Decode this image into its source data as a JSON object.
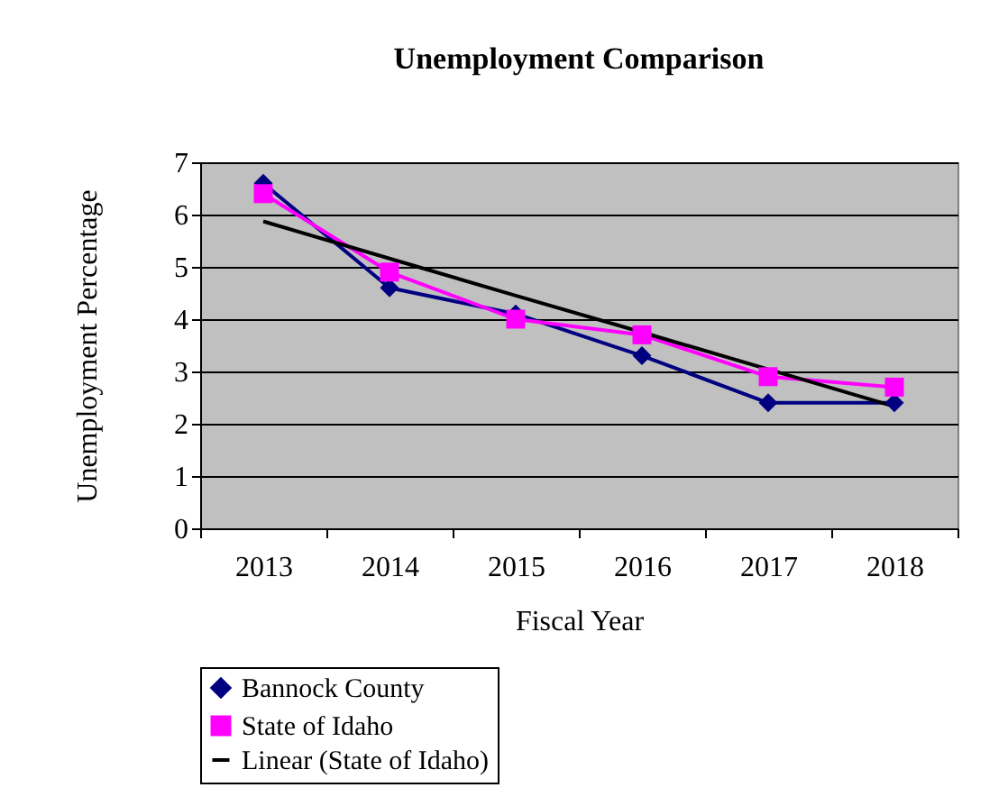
{
  "chart_data": {
    "type": "line",
    "title": "Unemployment Comparison",
    "xlabel": "Fiscal Year",
    "ylabel": "Unemployment Percentage",
    "categories": [
      "2013",
      "2014",
      "2015",
      "2016",
      "2017",
      "2018"
    ],
    "series": [
      {
        "name": "Bannock County",
        "color": "#000080",
        "marker": "diamond",
        "values": [
          6.6,
          4.6,
          4.1,
          3.3,
          2.4,
          2.4
        ]
      },
      {
        "name": "State of Idaho",
        "color": "#ff00ff",
        "marker": "square",
        "values": [
          6.4,
          4.9,
          4.0,
          3.7,
          2.9,
          2.7
        ]
      },
      {
        "name": "Linear (State of Idaho)",
        "color": "#000000",
        "marker": "none",
        "values": [
          5.87,
          5.16,
          4.45,
          3.75,
          3.04,
          2.33
        ]
      }
    ],
    "ylim": [
      0,
      7
    ],
    "yticks": [
      0,
      1,
      2,
      3,
      4,
      5,
      6,
      7
    ],
    "grid": "y",
    "legend": "bottom"
  }
}
